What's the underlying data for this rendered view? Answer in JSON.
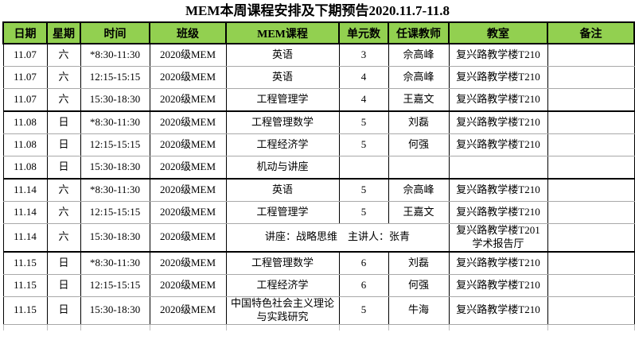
{
  "title": "MEM本周课程安排及下期预告2020.11.7-11.8",
  "colors": {
    "header_bg": "#92d050",
    "border_dark": "#000000",
    "border_light": "#a8a8a8"
  },
  "table": {
    "headers": [
      "日期",
      "星期",
      "时间",
      "班级",
      "MEM课程",
      "单元数",
      "任课教师",
      "教室",
      "备注"
    ],
    "rows": [
      {
        "date": "11.07",
        "weekday": "六",
        "time": "*8:30-11:30",
        "class": "2020级MEM",
        "course": "英语",
        "units": "3",
        "teacher": "佘高峰",
        "room": "复兴路教学楼T210",
        "note": ""
      },
      {
        "date": "11.07",
        "weekday": "六",
        "time": "12:15-15:15",
        "class": "2020级MEM",
        "course": "英语",
        "units": "4",
        "teacher": "佘高峰",
        "room": "复兴路教学楼T210",
        "note": ""
      },
      {
        "date": "11.07",
        "weekday": "六",
        "time": "15:30-18:30",
        "class": "2020级MEM",
        "course": "工程管理学",
        "units": "4",
        "teacher": "王嘉文",
        "room": "复兴路教学楼T210",
        "note": ""
      },
      {
        "date": "11.08",
        "weekday": "日",
        "time": "*8:30-11:30",
        "class": "2020级MEM",
        "course": "工程管理数学",
        "units": "5",
        "teacher": "刘磊",
        "room": "复兴路教学楼T210",
        "note": ""
      },
      {
        "date": "11.08",
        "weekday": "日",
        "time": "12:15-15:15",
        "class": "2020级MEM",
        "course": "工程经济学",
        "units": "5",
        "teacher": "何强",
        "room": "复兴路教学楼T210",
        "note": ""
      },
      {
        "date": "11.08",
        "weekday": "日",
        "time": "15:30-18:30",
        "class": "2020级MEM",
        "course": "机动与讲座",
        "units": "",
        "teacher": "",
        "room": "",
        "note": ""
      },
      {
        "date": "11.14",
        "weekday": "六",
        "time": "*8:30-11:30",
        "class": "2020级MEM",
        "course": "英语",
        "units": "5",
        "teacher": "佘高峰",
        "room": "复兴路教学楼T210",
        "note": ""
      },
      {
        "date": "11.14",
        "weekday": "六",
        "time": "12:15-15:15",
        "class": "2020级MEM",
        "course": "工程管理学",
        "units": "5",
        "teacher": "王嘉文",
        "room": "复兴路教学楼T210",
        "note": ""
      },
      {
        "date": "11.14",
        "weekday": "六",
        "time": "15:30-18:30",
        "class": "2020级MEM",
        "course": "讲座：战略思维　主讲人：张青",
        "merged": true,
        "units": "",
        "teacher": "",
        "room": "复兴路教学楼T201",
        "room_line2": "学术报告厅",
        "note": ""
      },
      {
        "date": "11.15",
        "weekday": "日",
        "time": "*8:30-11:30",
        "class": "2020级MEM",
        "course": "工程管理数学",
        "units": "6",
        "teacher": "刘磊",
        "room": "复兴路教学楼T210",
        "note": ""
      },
      {
        "date": "11.15",
        "weekday": "日",
        "time": "12:15-15:15",
        "class": "2020级MEM",
        "course": "工程经济学",
        "units": "6",
        "teacher": "何强",
        "room": "复兴路教学楼T210",
        "note": ""
      },
      {
        "date": "11.15",
        "weekday": "日",
        "time": "15:30-18:30",
        "class": "2020级MEM",
        "course": "中国特色社会主义理论与实践研究",
        "units": "5",
        "teacher": "牛海",
        "room": "复兴路教学楼T210",
        "note": ""
      }
    ]
  }
}
